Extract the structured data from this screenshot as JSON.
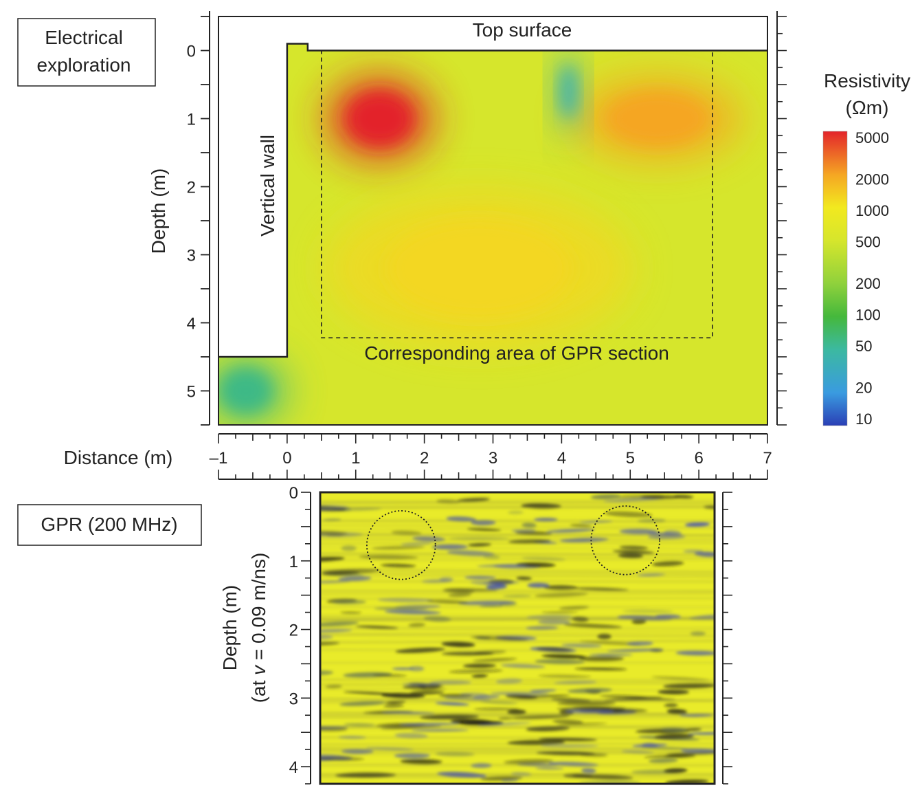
{
  "panels": {
    "electrical_label": [
      "Electrical",
      "exploration"
    ],
    "gpr_label": "GPR (200 MHz)"
  },
  "colorbar": {
    "title_line1": "Resistivity",
    "title_line2": "(Ωm)",
    "stops": [
      {
        "value": 10,
        "label": "10",
        "color": "#2a3fb5"
      },
      {
        "value": 20,
        "label": "20",
        "color": "#3a9be0"
      },
      {
        "value": 50,
        "label": "50",
        "color": "#3cb9a0"
      },
      {
        "value": 100,
        "label": "100",
        "color": "#45b83c"
      },
      {
        "value": 200,
        "label": "200",
        "color": "#8fd13c"
      },
      {
        "value": 500,
        "label": "500",
        "color": "#d6e62c"
      },
      {
        "value": 1000,
        "label": "1000",
        "color": "#f2e91f"
      },
      {
        "value": 2000,
        "label": "2000",
        "color": "#f5a623"
      },
      {
        "value": 5000,
        "label": "5000",
        "color": "#e3242b"
      }
    ]
  },
  "chart_data": [
    {
      "type": "heatmap",
      "title": "",
      "xlabel": "Distance (m)",
      "ylabel": "Depth (m)",
      "xlim": [
        -1,
        7
      ],
      "ylim": [
        5.5,
        -0.5
      ],
      "xticks": [
        -1,
        0,
        1,
        2,
        3,
        4,
        5,
        6,
        7
      ],
      "yticks": [
        0,
        1,
        2,
        3,
        4,
        5
      ],
      "colorscale": "log",
      "annotations": {
        "top_surface": "Top surface",
        "vertical_wall": "Vertical wall",
        "gpr_area": "Corresponding area of GPR section"
      },
      "gpr_area_bounds": {
        "x": [
          0.5,
          6.2
        ],
        "depth": [
          0,
          4.22
        ]
      },
      "wall_profile": [
        [
          -1,
          4.5
        ],
        [
          0,
          4.5
        ],
        [
          0,
          -0.1
        ],
        [
          0.3,
          -0.1
        ],
        [
          0.3,
          0
        ]
      ],
      "features": [
        {
          "name": "high resistivity zone",
          "x": 1.35,
          "depth": 1.0,
          "resistivity": 5000,
          "rx": 0.65,
          "ry": 0.5
        },
        {
          "name": "high resistivity zone",
          "x": 5.4,
          "depth": 1.0,
          "resistivity": 2000,
          "rx": 1.0,
          "ry": 0.5
        },
        {
          "name": "moderate resistivity zone",
          "x": 2.8,
          "depth": 3.2,
          "resistivity": 1200,
          "rx": 1.8,
          "ry": 0.9
        },
        {
          "name": "low resistivity zone",
          "x": 4.1,
          "depth": 0.6,
          "resistivity": 40,
          "rx": 0.15,
          "ry": 0.5
        },
        {
          "name": "low resistivity zone",
          "x": -0.6,
          "depth": 5.0,
          "resistivity": 60,
          "rx": 0.5,
          "ry": 0.4
        }
      ],
      "background_resistivity": 500
    },
    {
      "type": "heatmap",
      "title": "",
      "xlabel": "Distance (m)",
      "ylabel_line1": "Depth (m)",
      "ylabel_line2_prefix": "(at ",
      "ylabel_line2_var": "v",
      "ylabel_line2_suffix": " = 0.09 m/ns)",
      "xlim": [
        0.5,
        6.25
      ],
      "ylim": [
        4.25,
        0
      ],
      "yticks": [
        0,
        1,
        2,
        3,
        4
      ],
      "circled_anomalies": [
        {
          "x": 1.68,
          "depth": 0.77,
          "r": 0.5
        },
        {
          "x": 4.95,
          "depth": 0.7,
          "r": 0.5
        }
      ]
    }
  ]
}
